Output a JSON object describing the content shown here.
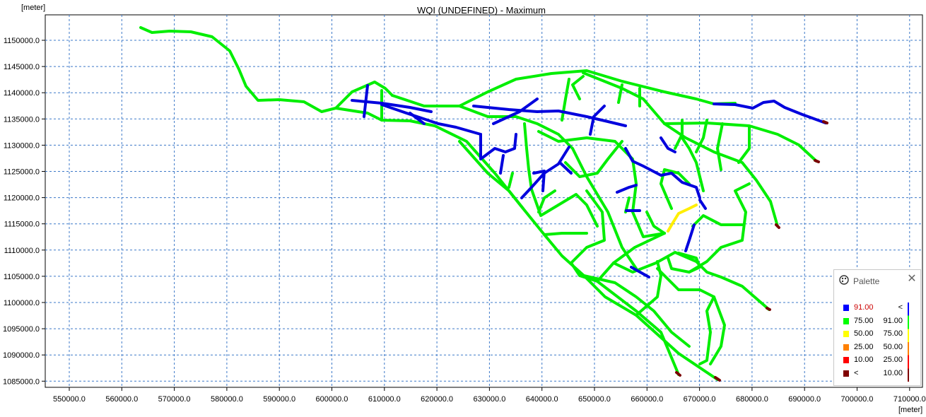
{
  "map": {
    "title": "WQI (UNDEFINED) - Maximum",
    "y_unit": "[meter]",
    "x_unit": "[meter]",
    "x_ticks": [
      "550000.0",
      "560000.0",
      "570000.0",
      "580000.0",
      "590000.0",
      "600000.0",
      "610000.0",
      "620000.0",
      "630000.0",
      "640000.0",
      "650000.0",
      "660000.0",
      "670000.0",
      "680000.0",
      "690000.0",
      "700000.0",
      "710000.0"
    ],
    "y_ticks": [
      "1150000.0",
      "1145000.0",
      "1140000.0",
      "1135000.0",
      "1130000.0",
      "1125000.0",
      "1120000.0",
      "1115000.0",
      "1110000.0",
      "1105000.0",
      "1100000.0",
      "1095000.0",
      "1090000.0",
      "1085000.0"
    ],
    "grid_color": "#3c78c8",
    "network_colors": {
      "good": "#00ee00",
      "excellent": "#0000dd",
      "medium": "#ffff00",
      "outlet": "#7a0000"
    }
  },
  "palette": {
    "title": "Palette",
    "close_icon": "close-icon",
    "rows": [
      {
        "lo": "91.00",
        "hi": "<",
        "color": "#0000ff",
        "lo_color": "#cc0000"
      },
      {
        "lo": "75.00",
        "hi": "91.00",
        "color": "#00ff00",
        "lo_color": "#000000"
      },
      {
        "lo": "50.00",
        "hi": "75.00",
        "color": "#ffff00",
        "lo_color": "#000000"
      },
      {
        "lo": "25.00",
        "hi": "50.00",
        "color": "#ff8000",
        "lo_color": "#000000"
      },
      {
        "lo": "10.00",
        "hi": "25.00",
        "color": "#ff0000",
        "lo_color": "#000000"
      },
      {
        "lo": "<",
        "hi": "10.00",
        "color": "#800000",
        "lo_color": "#000000"
      }
    ]
  }
}
